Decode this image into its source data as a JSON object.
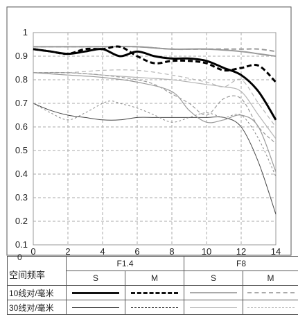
{
  "chart_data": {
    "type": "line",
    "title": "",
    "xlabel": "",
    "ylabel": "",
    "xlim": [
      0,
      14
    ],
    "ylim": [
      0.1,
      1
    ],
    "x_ticks": [
      "0",
      "2",
      "4",
      "6",
      "8",
      "10",
      "12",
      "14"
    ],
    "y_ticks": [
      "0.1",
      "0.2",
      "0.3",
      "0.4",
      "0.5",
      "0.6",
      "0.7",
      "0.8",
      "0.9",
      "1"
    ],
    "grid": true,
    "series": [
      {
        "id": "s10-f14-S",
        "color": "#000000",
        "width": 3,
        "dash": "",
        "x": [
          0,
          1,
          2,
          3,
          4,
          5,
          6,
          7,
          8,
          9,
          10,
          11,
          12,
          13,
          14
        ],
        "y": [
          0.93,
          0.92,
          0.91,
          0.92,
          0.93,
          0.9,
          0.92,
          0.9,
          0.89,
          0.89,
          0.88,
          0.85,
          0.82,
          0.75,
          0.63
        ]
      },
      {
        "id": "s10-f14-M",
        "color": "#000000",
        "width": 3,
        "dash": "7,4",
        "x": [
          0,
          1,
          2,
          3,
          4,
          5,
          6,
          7,
          8,
          9,
          10,
          11,
          12,
          13,
          14
        ],
        "y": [
          0.93,
          0.92,
          0.91,
          0.93,
          0.93,
          0.94,
          0.9,
          0.87,
          0.88,
          0.88,
          0.87,
          0.84,
          0.85,
          0.86,
          0.79
        ]
      },
      {
        "id": "s10-f8-S",
        "color": "#9a9a9a",
        "width": 2,
        "dash": "",
        "x": [
          0,
          2,
          4,
          6,
          8,
          10,
          12,
          13,
          14
        ],
        "y": [
          0.94,
          0.94,
          0.94,
          0.94,
          0.93,
          0.93,
          0.92,
          0.91,
          0.9
        ]
      },
      {
        "id": "s10-f8-M",
        "color": "#9a9a9a",
        "width": 2,
        "dash": "7,4",
        "x": [
          0,
          2,
          4,
          6,
          8,
          10,
          12,
          13,
          14
        ],
        "y": [
          0.94,
          0.94,
          0.94,
          0.94,
          0.93,
          0.93,
          0.93,
          0.93,
          0.92
        ]
      },
      {
        "id": "s30-f14-S",
        "color": "#444444",
        "width": 1,
        "dash": "",
        "x": [
          0,
          1,
          2,
          3,
          4,
          5,
          6,
          7,
          8,
          9,
          10,
          11,
          12,
          13,
          14
        ],
        "y": [
          0.7,
          0.67,
          0.65,
          0.64,
          0.63,
          0.63,
          0.64,
          0.64,
          0.64,
          0.64,
          0.64,
          0.64,
          0.6,
          0.45,
          0.23
        ]
      },
      {
        "id": "s30-f14-M",
        "color": "#888888",
        "width": 1,
        "dash": "3,3",
        "x": [
          0,
          1,
          2,
          3,
          4,
          4.5,
          5,
          6,
          7,
          8,
          9,
          10,
          11,
          12,
          13,
          14
        ],
        "y": [
          0.7,
          0.66,
          0.63,
          0.66,
          0.7,
          0.71,
          0.7,
          0.68,
          0.65,
          0.62,
          0.64,
          0.66,
          0.64,
          0.65,
          0.55,
          0.39
        ]
      },
      {
        "id": "s30-f8-S",
        "color": "#b5b5b5",
        "width": 1.2,
        "dash": "",
        "x": [
          0,
          2,
          4,
          6,
          8,
          10,
          11,
          12,
          13,
          14
        ],
        "y": [
          0.83,
          0.83,
          0.82,
          0.81,
          0.8,
          0.78,
          0.77,
          0.75,
          0.65,
          0.55
        ]
      },
      {
        "id": "s30-f8-M",
        "color": "#b5b5b5",
        "width": 1.2,
        "dash": "6,4",
        "x": [
          0,
          2,
          4,
          6,
          8,
          10,
          11,
          12,
          13,
          14
        ],
        "y": [
          0.83,
          0.83,
          0.84,
          0.84,
          0.82,
          0.79,
          0.77,
          0.8,
          0.7,
          0.6
        ]
      },
      {
        "id": "s30-f8-S-b",
        "color": "#9a9a9a",
        "width": 1.2,
        "dash": "",
        "x": [
          0,
          2,
          4,
          6,
          8,
          9,
          10,
          11,
          12,
          13,
          14
        ],
        "y": [
          0.83,
          0.82,
          0.81,
          0.79,
          0.75,
          0.67,
          0.62,
          0.63,
          0.65,
          0.6,
          0.41
        ]
      },
      {
        "id": "s30-f8-M-b",
        "color": "#9a9a9a",
        "width": 1.2,
        "dash": "5,3",
        "x": [
          0,
          2,
          4,
          6,
          7,
          8,
          9,
          10,
          11,
          12,
          13,
          14
        ],
        "y": [
          0.83,
          0.83,
          0.82,
          0.8,
          0.78,
          0.74,
          0.7,
          0.65,
          0.72,
          0.72,
          0.6,
          0.53
        ]
      }
    ]
  },
  "legend": {
    "corner_zero": "0",
    "row_label": "空间频率",
    "group_f14": "F1.4",
    "group_f8": "F8",
    "col_s1": "S",
    "col_m1": "M",
    "col_s2": "S",
    "col_m2": "M",
    "row10": "10线对/毫米",
    "row30": "30线对/毫米"
  }
}
